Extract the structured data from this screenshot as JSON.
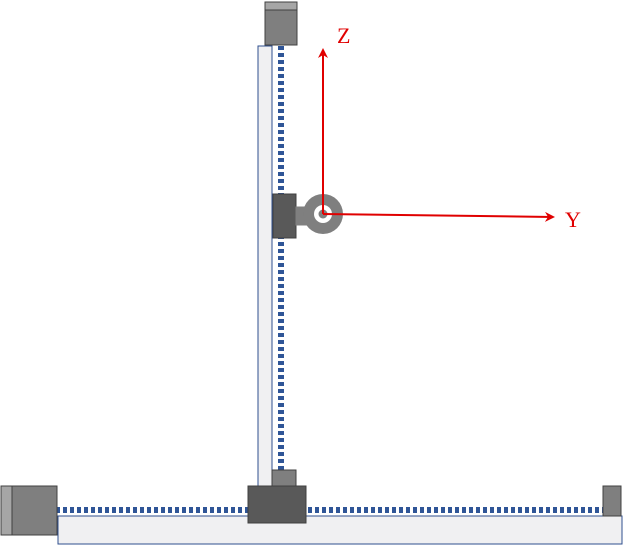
{
  "axes": {
    "z_label": "Z",
    "y_label": "Y",
    "color": "#e00000"
  },
  "colors": {
    "rail_fill": "#f0f0f2",
    "rail_stroke": "#2f4f8f",
    "leadscrew": "#2f5597",
    "motor_dark": "#595959",
    "motor_medium": "#7f7f7f",
    "motor_cap": "#a6a6a6",
    "camera": "#7f7f7f"
  },
  "icons": {
    "camera": "camera-sensor-icon",
    "motor": "stepper-motor-icon"
  }
}
